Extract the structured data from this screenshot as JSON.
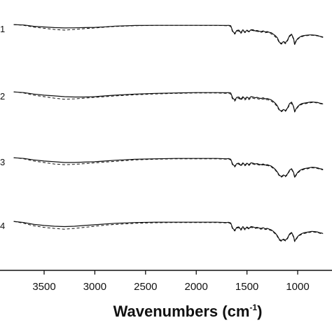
{
  "chart_data": {
    "type": "line",
    "title": "",
    "xlabel": "Wavenumbers (cm",
    "xlabel_sup": "-1",
    "xlabel_close": ")",
    "ylabel": "",
    "xlim": [
      3800,
      750
    ],
    "x_reversed": true,
    "grid": false,
    "x_ticks": [
      3500,
      3000,
      2500,
      2000,
      1500,
      1000
    ],
    "x_tick_labels": [
      "3500",
      "3000",
      "2500",
      "2000",
      "1500",
      "1000"
    ],
    "line_styles": {
      "solid": "solid",
      "dashed": "dashed"
    },
    "series_x": [
      3800,
      3700,
      3600,
      3500,
      3400,
      3300,
      3200,
      3100,
      3000,
      2900,
      2800,
      2600,
      2400,
      2200,
      2000,
      1800,
      1700,
      1680,
      1660,
      1640,
      1620,
      1600,
      1580,
      1560,
      1540,
      1520,
      1500,
      1480,
      1460,
      1440,
      1420,
      1400,
      1380,
      1360,
      1340,
      1320,
      1300,
      1280,
      1260,
      1240,
      1220,
      1200,
      1180,
      1160,
      1140,
      1120,
      1100,
      1080,
      1060,
      1040,
      1030,
      1020,
      1000,
      980,
      960,
      940,
      920,
      900,
      880,
      860,
      840,
      820,
      800,
      780,
      760,
      750
    ],
    "panels": [
      {
        "label": "1",
        "solid": [
          0.3,
          0.35,
          0.53,
          0.62,
          0.7,
          0.75,
          0.73,
          0.7,
          0.68,
          0.6,
          0.5,
          0.42,
          0.4,
          0.4,
          0.4,
          0.4,
          0.42,
          0.4,
          0.45,
          1.2,
          1.5,
          1.1,
          1.05,
          1.4,
          1.0,
          1.35,
          1.05,
          1.25,
          1.0,
          1.0,
          1.15,
          1.1,
          1.2,
          1.25,
          1.15,
          1.3,
          1.25,
          1.35,
          1.4,
          1.6,
          1.8,
          2.1,
          2.7,
          2.85,
          2.6,
          2.75,
          2.4,
          1.8,
          1.6,
          2.2,
          3.0,
          2.6,
          2.2,
          2.0,
          1.85,
          1.8,
          1.75,
          1.72,
          1.7,
          1.7,
          1.72,
          1.75,
          1.8,
          1.9,
          1.95,
          2.0
        ],
        "dashed": [
          0.3,
          0.4,
          0.65,
          0.8,
          0.95,
          1.05,
          0.95,
          0.85,
          0.75,
          0.65,
          0.55,
          0.45,
          0.41,
          0.4,
          0.41,
          0.42,
          0.45,
          0.45,
          0.55,
          1.35,
          1.6,
          1.2,
          1.15,
          1.5,
          1.1,
          1.4,
          1.15,
          1.3,
          1.1,
          1.1,
          1.25,
          1.2,
          1.3,
          1.35,
          1.25,
          1.4,
          1.35,
          1.45,
          1.55,
          1.75,
          1.95,
          2.25,
          2.8,
          2.95,
          2.7,
          2.9,
          2.5,
          1.9,
          1.7,
          2.3,
          3.05,
          2.7,
          2.3,
          2.05,
          1.95,
          1.85,
          1.8,
          1.78,
          1.75,
          1.75,
          1.78,
          1.8,
          1.85,
          1.95,
          2.0,
          2.05
        ]
      },
      {
        "label": "2",
        "solid": [
          0.3,
          0.4,
          0.6,
          0.75,
          0.85,
          0.95,
          1.0,
          1.0,
          0.95,
          0.85,
          0.75,
          0.6,
          0.5,
          0.45,
          0.4,
          0.4,
          0.42,
          0.4,
          0.45,
          1.15,
          1.4,
          1.05,
          1.0,
          1.3,
          0.95,
          1.25,
          1.0,
          1.2,
          0.95,
          1.0,
          1.1,
          1.05,
          1.15,
          1.2,
          1.1,
          1.25,
          1.2,
          1.3,
          1.4,
          1.6,
          1.85,
          2.2,
          2.75,
          2.9,
          2.7,
          2.85,
          2.5,
          1.9,
          1.7,
          2.3,
          3.0,
          2.7,
          2.3,
          2.05,
          1.9,
          1.85,
          1.8,
          1.75,
          1.7,
          1.68,
          1.7,
          1.72,
          1.75,
          1.85,
          1.9,
          1.95
        ],
        "dashed": [
          0.3,
          0.45,
          0.75,
          0.95,
          1.15,
          1.3,
          1.25,
          1.15,
          1.05,
          0.95,
          0.85,
          0.7,
          0.58,
          0.5,
          0.45,
          0.45,
          0.5,
          0.5,
          0.6,
          1.35,
          1.55,
          1.2,
          1.15,
          1.45,
          1.1,
          1.4,
          1.15,
          1.35,
          1.1,
          1.15,
          1.25,
          1.2,
          1.3,
          1.35,
          1.25,
          1.4,
          1.35,
          1.45,
          1.55,
          1.75,
          2.0,
          2.35,
          2.85,
          3.0,
          2.8,
          2.95,
          2.6,
          2.05,
          1.85,
          2.4,
          3.05,
          2.8,
          2.4,
          2.15,
          2.0,
          1.95,
          1.9,
          1.85,
          1.8,
          1.75,
          1.75,
          1.78,
          1.8,
          1.9,
          1.95,
          2.0
        ]
      },
      {
        "label": "3",
        "solid": [
          0.3,
          0.4,
          0.6,
          0.75,
          0.85,
          0.95,
          0.95,
          0.9,
          0.85,
          0.75,
          0.65,
          0.5,
          0.45,
          0.4,
          0.4,
          0.4,
          0.45,
          0.42,
          0.5,
          1.2,
          1.45,
          1.1,
          1.05,
          1.35,
          1.0,
          1.3,
          1.05,
          1.25,
          1.0,
          1.05,
          1.15,
          1.1,
          1.2,
          1.25,
          1.15,
          1.3,
          1.25,
          1.35,
          1.45,
          1.65,
          1.9,
          2.25,
          2.7,
          2.85,
          2.65,
          2.8,
          2.5,
          2.0,
          1.8,
          2.3,
          2.95,
          2.7,
          2.3,
          2.05,
          1.9,
          1.8,
          1.75,
          1.7,
          1.65,
          1.6,
          1.62,
          1.65,
          1.7,
          1.8,
          1.85,
          1.9
        ],
        "dashed": [
          0.3,
          0.45,
          0.75,
          0.95,
          1.15,
          1.25,
          1.2,
          1.1,
          1.0,
          0.9,
          0.8,
          0.6,
          0.5,
          0.45,
          0.45,
          0.45,
          0.5,
          0.5,
          0.6,
          1.35,
          1.55,
          1.2,
          1.15,
          1.45,
          1.1,
          1.4,
          1.15,
          1.35,
          1.1,
          1.15,
          1.25,
          1.2,
          1.3,
          1.35,
          1.25,
          1.4,
          1.35,
          1.45,
          1.55,
          1.75,
          2.0,
          2.35,
          2.8,
          2.95,
          2.75,
          2.9,
          2.6,
          2.1,
          1.9,
          2.4,
          3.0,
          2.8,
          2.4,
          2.15,
          2.0,
          1.9,
          1.85,
          1.8,
          1.72,
          1.68,
          1.7,
          1.72,
          1.78,
          1.88,
          1.92,
          1.95
        ]
      },
      {
        "label": "4",
        "solid": [
          0.3,
          0.45,
          0.7,
          0.85,
          0.95,
          1.0,
          0.95,
          0.85,
          0.75,
          0.65,
          0.55,
          0.45,
          0.4,
          0.4,
          0.4,
          0.4,
          0.45,
          0.42,
          0.5,
          1.25,
          1.5,
          1.1,
          1.05,
          1.4,
          1.0,
          1.35,
          1.05,
          1.25,
          1.0,
          1.05,
          1.15,
          1.1,
          1.2,
          1.25,
          1.15,
          1.3,
          1.25,
          1.35,
          1.45,
          1.65,
          1.9,
          2.25,
          2.75,
          2.9,
          2.7,
          2.85,
          2.55,
          2.0,
          1.8,
          2.35,
          3.0,
          2.75,
          2.35,
          2.1,
          1.95,
          1.85,
          1.8,
          1.75,
          1.7,
          1.65,
          1.68,
          1.7,
          1.75,
          1.85,
          1.9,
          1.95
        ],
        "dashed": [
          0.3,
          0.55,
          0.9,
          1.1,
          1.25,
          1.35,
          1.25,
          1.1,
          0.95,
          0.8,
          0.7,
          0.55,
          0.48,
          0.45,
          0.45,
          0.45,
          0.5,
          0.5,
          0.6,
          1.4,
          1.6,
          1.2,
          1.15,
          1.5,
          1.1,
          1.45,
          1.15,
          1.35,
          1.1,
          1.15,
          1.25,
          1.2,
          1.3,
          1.35,
          1.25,
          1.4,
          1.35,
          1.45,
          1.55,
          1.75,
          2.0,
          2.35,
          2.85,
          3.0,
          2.8,
          2.95,
          2.65,
          2.1,
          1.9,
          2.45,
          3.05,
          2.85,
          2.45,
          2.2,
          2.05,
          1.95,
          1.9,
          1.85,
          1.78,
          1.72,
          1.75,
          1.78,
          1.82,
          1.92,
          1.97,
          2.0
        ]
      }
    ]
  }
}
